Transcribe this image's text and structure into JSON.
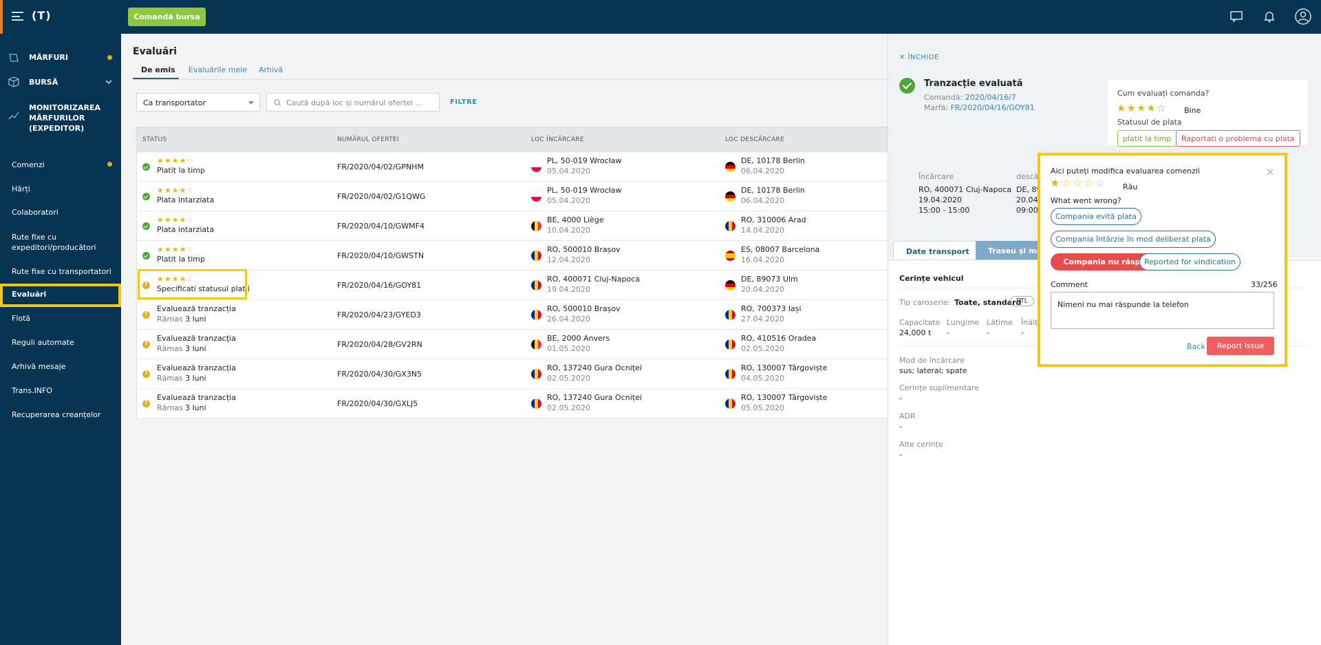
{
  "topbar": {
    "logo": "(T)",
    "order_button": "Comandă bursa"
  },
  "sidebar": {
    "items": [
      {
        "label": "MĂRFURI"
      },
      {
        "label": "BURSĂ"
      },
      {
        "label": "MONITORIZAREA MĂRFURILOR (EXPEDITOR)"
      },
      {
        "label": "Comenzi"
      },
      {
        "label": "Hărți"
      },
      {
        "label": "Colaboratori"
      },
      {
        "label": "Rute fixe cu expeditori/producători"
      },
      {
        "label": "Rute fixe cu transportatori"
      },
      {
        "label": "Evaluări"
      },
      {
        "label": "Flotă"
      },
      {
        "label": "Reguli automate"
      },
      {
        "label": "Arhivă mesaje"
      },
      {
        "label": "Trans.INFO"
      },
      {
        "label": "Recuperarea creanțelor"
      }
    ]
  },
  "main": {
    "title": "Evaluări",
    "tabs": [
      "De emis",
      "Evaluările mele",
      "Arhivă"
    ],
    "select_value": "Ca transportator",
    "search_placeholder": "Caută după loc și numărul ofertei ...",
    "filters_label": "FILTRE",
    "columns": [
      "STATUS",
      "NUMĂRUL OFERTEI",
      "LOC ÎNCĂRCARE",
      "LOC DESCĂRCARE"
    ],
    "rows": [
      {
        "status": "ok",
        "rating": 4,
        "status_text": "Platit la timp",
        "offer": "FR/2020/04/02/GPNHM",
        "from": "PL, 50-019 Wrocław",
        "from_date": "05.04.2020",
        "from_flag": "pl",
        "to": "DE, 10178 Berlin",
        "to_date": "06.04.2020",
        "to_flag": "de"
      },
      {
        "status": "ok",
        "rating": 4,
        "status_text": "Plata intarziata",
        "offer": "FR/2020/04/02/G1QWG",
        "from": "PL, 50-019 Wrocław",
        "from_date": "05.04.2020",
        "from_flag": "pl",
        "to": "DE, 10178 Berlin",
        "to_date": "06.04.2020",
        "to_flag": "de"
      },
      {
        "status": "ok",
        "rating": 4,
        "status_text": "Plata intarziata",
        "offer": "FR/2020/04/10/GWMF4",
        "from": "BE, 4000 Liège",
        "from_date": "10.04.2020",
        "from_flag": "be",
        "to": "RO, 310006 Arad",
        "to_date": "14.04.2020",
        "to_flag": "ro"
      },
      {
        "status": "ok",
        "rating": 4,
        "status_text": "Platit la timp",
        "offer": "FR/2020/04/10/GWSTN",
        "from": "RO, 500010 Brașov",
        "from_date": "12.04.2020",
        "from_flag": "ro",
        "to": "ES, 08007 Barcelona",
        "to_date": "16.04.2020",
        "to_flag": "es"
      },
      {
        "status": "warn",
        "rating": 4,
        "status_text": "Specificati statusul platii",
        "offer": "FR/2020/04/16/GOY81",
        "from": "RO, 400071 Cluj-Napoca",
        "from_date": "19.04.2020",
        "from_flag": "ro",
        "to": "DE, 89073 Ulm",
        "to_date": "20.04.2020",
        "to_flag": "de"
      },
      {
        "status": "warn",
        "rating": 0,
        "status_text": "Evaluează tranzacția",
        "remaining_prefix": "Rămas",
        "remaining_value": "3 luni",
        "offer": "FR/2020/04/23/GYED3",
        "from": "RO, 500010 Brașov",
        "from_date": "26.04.2020",
        "from_flag": "ro",
        "to": "RO, 700373 Iași",
        "to_date": "27.04.2020",
        "to_flag": "ro"
      },
      {
        "status": "warn",
        "rating": 0,
        "status_text": "Evaluează tranzacția",
        "remaining_prefix": "Rămas",
        "remaining_value": "3 luni",
        "offer": "FR/2020/04/28/GV2RN",
        "from": "BE, 2000 Anvers",
        "from_date": "01.05.2020",
        "from_flag": "be",
        "to": "RO, 410516 Oradea",
        "to_date": "02.05.2020",
        "to_flag": "ro"
      },
      {
        "status": "warn",
        "rating": 0,
        "status_text": "Evaluează tranzacția",
        "remaining_prefix": "Rămas",
        "remaining_value": "3 luni",
        "offer": "FR/2020/04/30/GX3N5",
        "from": "RO, 137240 Gura Ocniței",
        "from_date": "02.05.2020",
        "from_flag": "ro",
        "to": "RO, 130007 Târgoviște",
        "to_date": "04.05.2020",
        "to_flag": "ro"
      },
      {
        "status": "warn",
        "rating": 0,
        "status_text": "Evaluează tranzacția",
        "remaining_prefix": "Rămas",
        "remaining_value": "3 luni",
        "offer": "FR/2020/04/30/GXLJ5",
        "from": "RO, 137240 Gura Ocniței",
        "from_date": "02.05.2020",
        "from_flag": "ro",
        "to": "RO, 130007 Târgoviște",
        "to_date": "05.05.2020",
        "to_flag": "ro"
      }
    ]
  },
  "panel": {
    "close_label": "ÎNCHIDE",
    "title": "Tranzacție evaluată",
    "order_label": "Comandă:",
    "order_value": "2020/04/16/7",
    "cargo_label": "Marfă:",
    "cargo_value": "FR/2020/04/16/GOY81",
    "eval_question": "Cum evaluați comanda?",
    "eval_rating": 4,
    "eval_rating_text": "Bine",
    "payment_status_label": "Statusul de plata",
    "paid_on_time_button": "platit la timp",
    "report_payment_button": "Raportati o problema cu plata",
    "loading_label": "Încărcare",
    "loading_place": "RO, 400071 Cluj-Napoca",
    "loading_date": "19.04.2020",
    "loading_time": "15:00 - 15:00",
    "unloading_label": "descă",
    "unloading_place": "DE, 89",
    "unloading_date": "20.04.",
    "unloading_time": "09:00",
    "tab_transport": "Date transport",
    "tab_route": "Traseu și marfă",
    "vehicle_section": "Cerințe vehicul",
    "body_type_label": "Tip caroserie:",
    "body_type_value": "Toate, standard",
    "ftl": "FTL",
    "capacity_label": "Capacitate",
    "capacity_value": "24,000 t",
    "length_label": "Lungime",
    "length_value": "-",
    "width_label": "Lățime",
    "width_value": "-",
    "height_label": "Înălț",
    "height_value": "-",
    "loading_mode_label": "Mod de încărcare",
    "loading_mode_value": "sus; lateral; spate",
    "extra_req_label": "Cerințe suplimentare",
    "extra_req_value": "-",
    "adr_label": "ADR",
    "adr_value": "-",
    "other_req_label": "Alte cerințe",
    "other_req_value": "-"
  },
  "popup": {
    "title": "Aici puteți modifica evaluarea comenzii",
    "rating": 1,
    "rating_text": "Rău",
    "what_went_wrong": "What went wrong?",
    "chips": [
      "Compania evită plata",
      "Compania întârzie în mod deliberat plata",
      "Compania nu răspunde",
      "Reported for vindication"
    ],
    "selected_chip": "Compania nu răspunde",
    "comment_label": "Comment",
    "comment_count": "33/256",
    "comment_text": "Nimeni nu mai răspunde la telefon",
    "back_label": "Back",
    "report_button": "Report issue"
  },
  "colors": {
    "brand_dark": "#063553",
    "order_button": "#8dc63f",
    "highlight": "#f5c518",
    "danger": "#e84d4d",
    "link": "#3a86b5",
    "star": "#e7b315"
  }
}
